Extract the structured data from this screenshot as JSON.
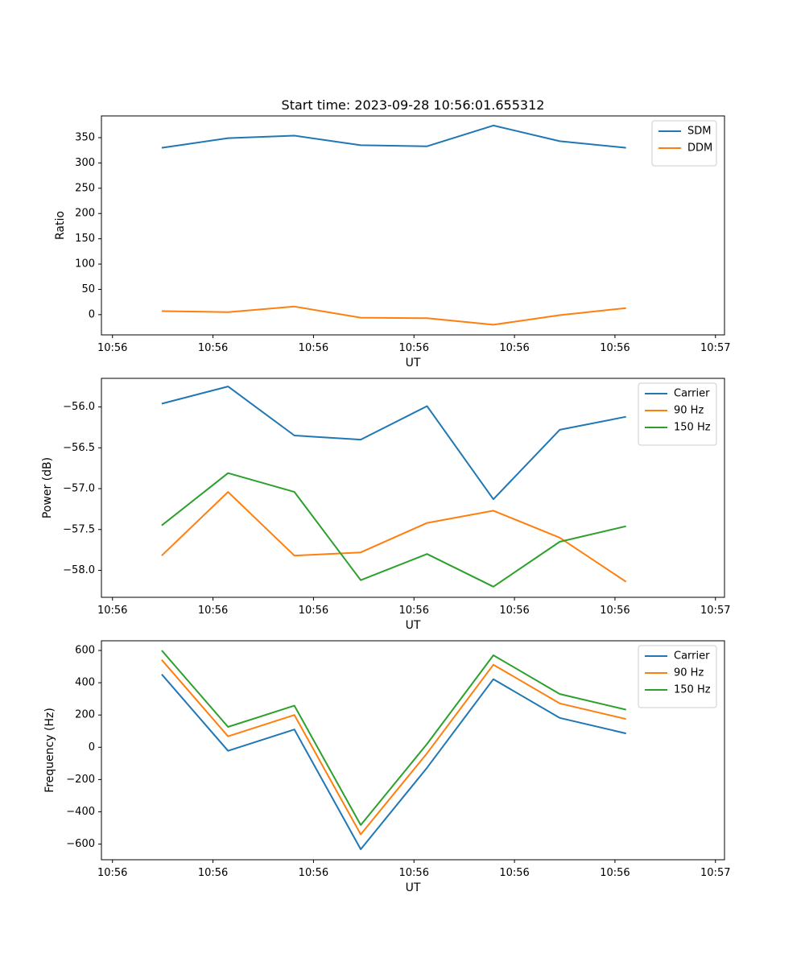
{
  "figure_title": "Start time: 2023-09-28 10:56:01.655312",
  "chart_data": [
    {
      "type": "line",
      "title": "Start time: 2023-09-28 10:56:01.655312",
      "xlabel": "UT",
      "ylabel": "Ratio",
      "x": [
        0.6,
        1.26,
        1.92,
        2.58,
        3.24,
        3.9,
        4.56,
        5.22
      ],
      "xlim": [
        0,
        6.2
      ],
      "x_ticks": [
        0.11,
        1.11,
        2.11,
        3.11,
        4.11,
        5.11,
        6.11
      ],
      "x_tick_labels": [
        "10:56",
        "10:56",
        "10:56",
        "10:56",
        "10:56",
        "10:56",
        "10:57"
      ],
      "ylim": [
        -40,
        393
      ],
      "y_ticks": [
        0,
        50,
        100,
        150,
        200,
        250,
        300,
        350
      ],
      "y_tick_labels": [
        "0",
        "50",
        "100",
        "150",
        "200",
        "250",
        "300",
        "350"
      ],
      "legend_position": "top-right",
      "series": [
        {
          "name": "SDM",
          "color": "#1f77b4",
          "values": [
            330,
            349,
            354,
            335,
            333,
            374,
            343,
            330
          ]
        },
        {
          "name": "DDM",
          "color": "#ff7f0e",
          "values": [
            7,
            5,
            16,
            -6,
            -7,
            -20,
            -1,
            13
          ]
        }
      ]
    },
    {
      "type": "line",
      "title": "",
      "xlabel": "UT",
      "ylabel": "Power (dB)",
      "x": [
        0.6,
        1.26,
        1.92,
        2.58,
        3.24,
        3.9,
        4.56,
        5.22
      ],
      "xlim": [
        0,
        6.2
      ],
      "x_ticks": [
        0.11,
        1.11,
        2.11,
        3.11,
        4.11,
        5.11,
        6.11
      ],
      "x_tick_labels": [
        "10:56",
        "10:56",
        "10:56",
        "10:56",
        "10:56",
        "10:56",
        "10:57"
      ],
      "ylim": [
        -58.33,
        -55.65
      ],
      "y_ticks": [
        -58.0,
        -57.5,
        -57.0,
        -56.5,
        -56.0
      ],
      "y_tick_labels": [
        "−58.0",
        "−57.5",
        "−57.0",
        "−56.5",
        "−56.0"
      ],
      "legend_position": "top-right",
      "series": [
        {
          "name": "Carrier",
          "color": "#1f77b4",
          "values": [
            -55.96,
            -55.75,
            -56.35,
            -56.4,
            -55.99,
            -57.13,
            -56.28,
            -56.12
          ]
        },
        {
          "name": "90 Hz",
          "color": "#ff7f0e",
          "values": [
            -57.82,
            -57.04,
            -57.82,
            -57.78,
            -57.42,
            -57.27,
            -57.6,
            -58.14
          ]
        },
        {
          "name": "150 Hz",
          "color": "#2ca02c",
          "values": [
            -57.45,
            -56.81,
            -57.04,
            -58.12,
            -57.8,
            -58.2,
            -57.65,
            -57.46
          ]
        }
      ]
    },
    {
      "type": "line",
      "title": "",
      "xlabel": "UT",
      "ylabel": "Frequency (Hz)",
      "x": [
        0.6,
        1.26,
        1.92,
        2.58,
        3.24,
        3.9,
        4.56,
        5.22
      ],
      "xlim": [
        0,
        6.2
      ],
      "x_ticks": [
        0.11,
        1.11,
        2.11,
        3.11,
        4.11,
        5.11,
        6.11
      ],
      "x_tick_labels": [
        "10:56",
        "10:56",
        "10:56",
        "10:56",
        "10:56",
        "10:56",
        "10:57"
      ],
      "ylim": [
        -697,
        660
      ],
      "y_ticks": [
        -600,
        -400,
        -200,
        0,
        200,
        400,
        600
      ],
      "y_tick_labels": [
        "−600",
        "−400",
        "−200",
        "0",
        "200",
        "400",
        "600"
      ],
      "legend_position": "top-right",
      "series": [
        {
          "name": "Carrier",
          "color": "#1f77b4",
          "values": [
            452,
            -22,
            110,
            -632,
            -127,
            422,
            182,
            86
          ]
        },
        {
          "name": "90 Hz",
          "color": "#ff7f0e",
          "values": [
            542,
            68,
            200,
            -540,
            -37,
            512,
            272,
            175
          ]
        },
        {
          "name": "150 Hz",
          "color": "#2ca02c",
          "values": [
            600,
            126,
            258,
            -482,
            21,
            570,
            330,
            233
          ]
        }
      ]
    }
  ]
}
